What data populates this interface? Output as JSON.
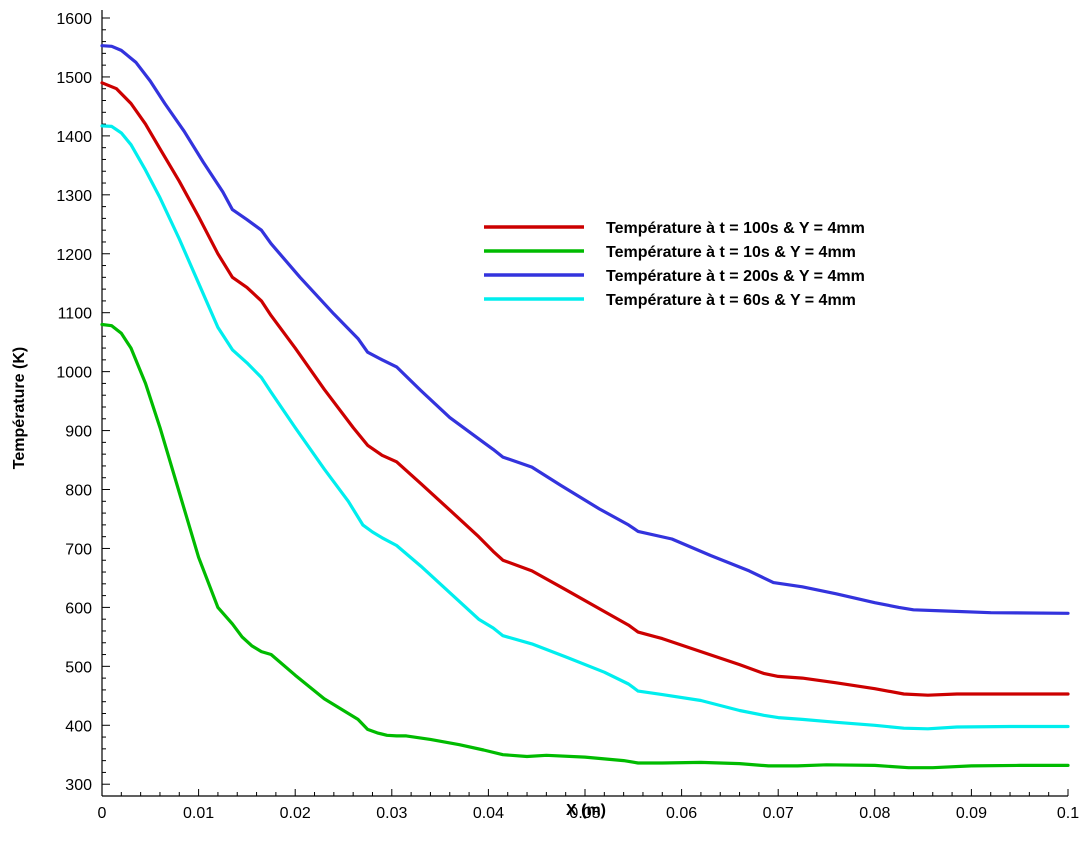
{
  "chart_data": {
    "type": "line",
    "xlabel": "X (m)",
    "ylabel": "Température (K)",
    "xlim": [
      0,
      0.1
    ],
    "ylim": [
      280,
      1600
    ],
    "xticks": [
      0,
      0.01,
      0.02,
      0.03,
      0.04,
      0.05,
      0.06,
      0.07,
      0.08,
      0.09,
      0.1
    ],
    "xtick_labels": [
      "0",
      "0.01",
      "0.02",
      "0.03",
      "0.04",
      "0.05",
      "0.06",
      "0.07",
      "0.08",
      "0.09",
      "0.1"
    ],
    "yticks": [
      300,
      400,
      500,
      600,
      700,
      800,
      900,
      1000,
      1100,
      1200,
      1300,
      1400,
      1500,
      1600
    ],
    "ytick_labels": [
      "300",
      "400",
      "500",
      "600",
      "700",
      "800",
      "900",
      "1000",
      "1100",
      "1200",
      "1300",
      "1400",
      "1500",
      "1600"
    ],
    "grid": false,
    "legend_position": "upper-right",
    "series": [
      {
        "name": "Température à t = 100s & Y = 4mm",
        "color": "#cc0000",
        "x": [
          0,
          0.0015,
          0.003,
          0.0045,
          0.006,
          0.008,
          0.01,
          0.012,
          0.0135,
          0.015,
          0.0165,
          0.0175,
          0.02,
          0.023,
          0.026,
          0.0275,
          0.029,
          0.0305,
          0.033,
          0.036,
          0.039,
          0.0405,
          0.0415,
          0.0445,
          0.048,
          0.052,
          0.0545,
          0.0555,
          0.058,
          0.062,
          0.066,
          0.0685,
          0.07,
          0.0725,
          0.076,
          0.08,
          0.083,
          0.0855,
          0.0885,
          0.094,
          0.1
        ],
        "y": [
          1490,
          1480,
          1455,
          1420,
          1378,
          1323,
          1263,
          1200,
          1160,
          1143,
          1120,
          1095,
          1040,
          970,
          905,
          875,
          858,
          847,
          810,
          765,
          720,
          695,
          680,
          662,
          630,
          593,
          570,
          558,
          547,
          525,
          503,
          488,
          483,
          480,
          472,
          462,
          453,
          451,
          453,
          453,
          453
        ]
      },
      {
        "name": "Température à t = 10s & Y = 4mm",
        "color": "#00bb00",
        "x": [
          0,
          0.001,
          0.002,
          0.003,
          0.0045,
          0.006,
          0.008,
          0.01,
          0.012,
          0.0135,
          0.0145,
          0.0155,
          0.0165,
          0.0175,
          0.02,
          0.023,
          0.0265,
          0.0275,
          0.0285,
          0.0295,
          0.0305,
          0.0315,
          0.034,
          0.037,
          0.0395,
          0.0415,
          0.044,
          0.046,
          0.05,
          0.054,
          0.0555,
          0.058,
          0.062,
          0.066,
          0.069,
          0.072,
          0.075,
          0.08,
          0.0835,
          0.086,
          0.09,
          0.095,
          0.1
        ],
        "y": [
          1080,
          1078,
          1065,
          1040,
          980,
          905,
          795,
          685,
          600,
          572,
          550,
          535,
          525,
          520,
          485,
          445,
          410,
          393,
          387,
          383,
          382,
          382,
          376,
          367,
          358,
          350,
          347,
          349,
          346,
          340,
          336,
          336,
          337,
          335,
          331,
          331,
          333,
          332,
          328,
          328,
          331,
          332,
          332
        ]
      },
      {
        "name": "Température à t = 200s & Y = 4mm",
        "color": "#3333dd",
        "x": [
          0,
          0.001,
          0.002,
          0.0035,
          0.005,
          0.0065,
          0.0085,
          0.0105,
          0.0125,
          0.0135,
          0.015,
          0.0165,
          0.0175,
          0.0205,
          0.024,
          0.0265,
          0.0275,
          0.029,
          0.0305,
          0.033,
          0.036,
          0.0395,
          0.0405,
          0.0415,
          0.0445,
          0.0475,
          0.0515,
          0.0545,
          0.0555,
          0.059,
          0.063,
          0.067,
          0.0685,
          0.0695,
          0.0725,
          0.076,
          0.08,
          0.0825,
          0.084,
          0.087,
          0.092,
          0.1
        ],
        "y": [
          1553,
          1552,
          1545,
          1525,
          1493,
          1455,
          1408,
          1355,
          1305,
          1275,
          1258,
          1240,
          1217,
          1160,
          1098,
          1056,
          1033,
          1020,
          1008,
          968,
          922,
          880,
          868,
          855,
          838,
          807,
          767,
          740,
          729,
          716,
          688,
          662,
          650,
          642,
          635,
          623,
          608,
          600,
          596,
          594,
          591,
          590
        ]
      },
      {
        "name": "Température à t = 60s & Y = 4mm",
        "color": "#00eeee",
        "x": [
          0,
          0.001,
          0.002,
          0.003,
          0.0045,
          0.006,
          0.008,
          0.01,
          0.012,
          0.0135,
          0.015,
          0.0165,
          0.0175,
          0.02,
          0.023,
          0.0255,
          0.027,
          0.028,
          0.029,
          0.0305,
          0.033,
          0.036,
          0.039,
          0.0405,
          0.0415,
          0.0445,
          0.048,
          0.052,
          0.0545,
          0.0555,
          0.058,
          0.062,
          0.066,
          0.0685,
          0.07,
          0.0725,
          0.076,
          0.08,
          0.083,
          0.0855,
          0.0885,
          0.094,
          0.1
        ],
        "y": [
          1417,
          1416,
          1405,
          1385,
          1342,
          1295,
          1225,
          1150,
          1075,
          1037,
          1015,
          990,
          965,
          905,
          835,
          780,
          740,
          728,
          718,
          705,
          670,
          625,
          580,
          565,
          552,
          538,
          516,
          490,
          470,
          458,
          452,
          442,
          425,
          417,
          413,
          410,
          405,
          400,
          395,
          394,
          397,
          398,
          398
        ]
      }
    ]
  }
}
